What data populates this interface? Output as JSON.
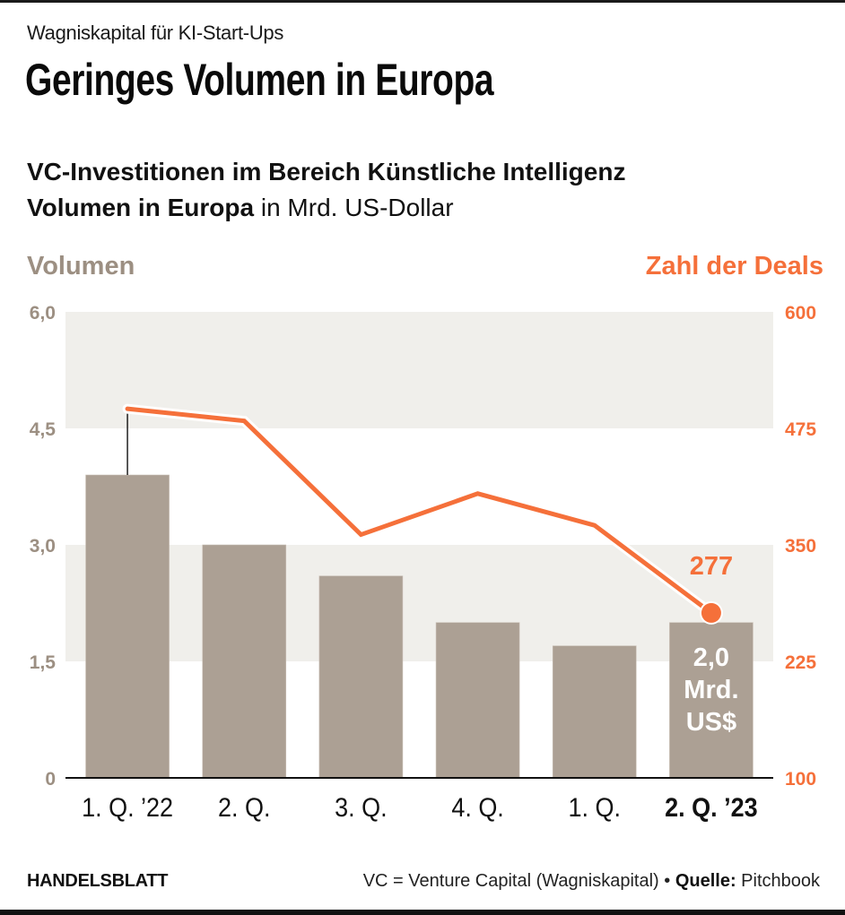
{
  "kicker": "Wagniskapital für KI-Start-Ups",
  "headline": "Geringes Volumen in Europa",
  "subtitle": {
    "line1": "VC-Investitionen im Bereich Künstliche Intelligenz",
    "line2_bold": "Volumen in Europa",
    "line2_rest": " in Mrd. US-Dollar"
  },
  "legend": {
    "left": "Volumen",
    "right": "Zahl der Deals"
  },
  "colors": {
    "bar": "#aca094",
    "line": "#f5703a",
    "band": "#f0efeb",
    "left_axis": "#9c8f82",
    "right_axis": "#f5703a"
  },
  "chart_data": {
    "type": "bar",
    "title": "VC-Investitionen im Bereich Künstliche Intelligenz – Volumen in Europa in Mrd. US-Dollar",
    "categories": [
      "1. Q. ’22",
      "2. Q.",
      "3. Q.",
      "4. Q.",
      "1. Q.",
      "2. Q. ’23"
    ],
    "highlight_category": 5,
    "series": [
      {
        "name": "Volumen",
        "type": "bar",
        "axis": "left",
        "unit": "Mrd. US$",
        "values": [
          3.9,
          3.0,
          2.6,
          2.0,
          1.7,
          2.0
        ]
      },
      {
        "name": "Zahl der Deals",
        "type": "line",
        "axis": "right",
        "values": [
          496,
          483,
          361,
          405,
          371,
          277
        ]
      }
    ],
    "left_axis": {
      "label": "Volumen",
      "ylim": [
        0,
        6.0
      ],
      "ticks": [
        0,
        1.5,
        3.0,
        4.5,
        6.0
      ],
      "tick_labels": [
        "0",
        "1,5",
        "3,0",
        "4,5",
        "6,0"
      ]
    },
    "right_axis": {
      "label": "Zahl der Deals",
      "ylim": [
        100,
        600
      ],
      "ticks": [
        100,
        225,
        350,
        475,
        600
      ],
      "tick_labels": [
        "100",
        "225",
        "350",
        "475",
        "600"
      ]
    },
    "annotations": {
      "last_deals_label": "277",
      "last_bar_label": [
        "2,0",
        "Mrd.",
        "US$"
      ]
    },
    "grid": "alternating bands",
    "legend": "top-left / top-right axis titles"
  },
  "footer": {
    "brand": "HANDELSBLATT",
    "note": "VC = Venture Capital (Wagniskapital) • ",
    "source_label": "Quelle:",
    "source": " Pitchbook"
  }
}
